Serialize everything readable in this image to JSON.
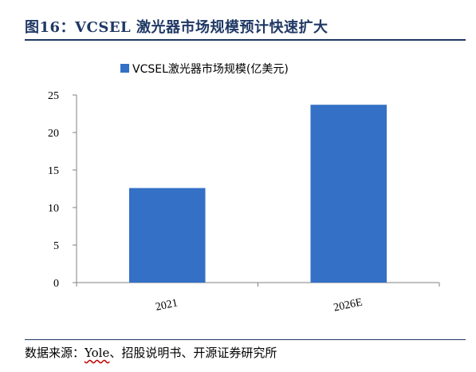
{
  "figure": {
    "title": "图16：VCSEL 激光器市场规模预计快速扩大"
  },
  "source": {
    "prefix": "数据来源：",
    "name": "Yole",
    "suffix": "、招股说明书、开源证券研究所"
  },
  "chart_data": {
    "type": "bar",
    "categories": [
      "2021",
      "2026E"
    ],
    "series": [
      {
        "name": "VCSEL激光器市场规模(亿美元)",
        "values": [
          12.6,
          23.7
        ],
        "color": "#3370c6"
      }
    ],
    "title": "",
    "xlabel": "",
    "ylabel": "",
    "ylim": [
      0,
      25
    ],
    "yticks": [
      0,
      5,
      10,
      15,
      20,
      25
    ],
    "grid": false,
    "legend": "top-center"
  }
}
